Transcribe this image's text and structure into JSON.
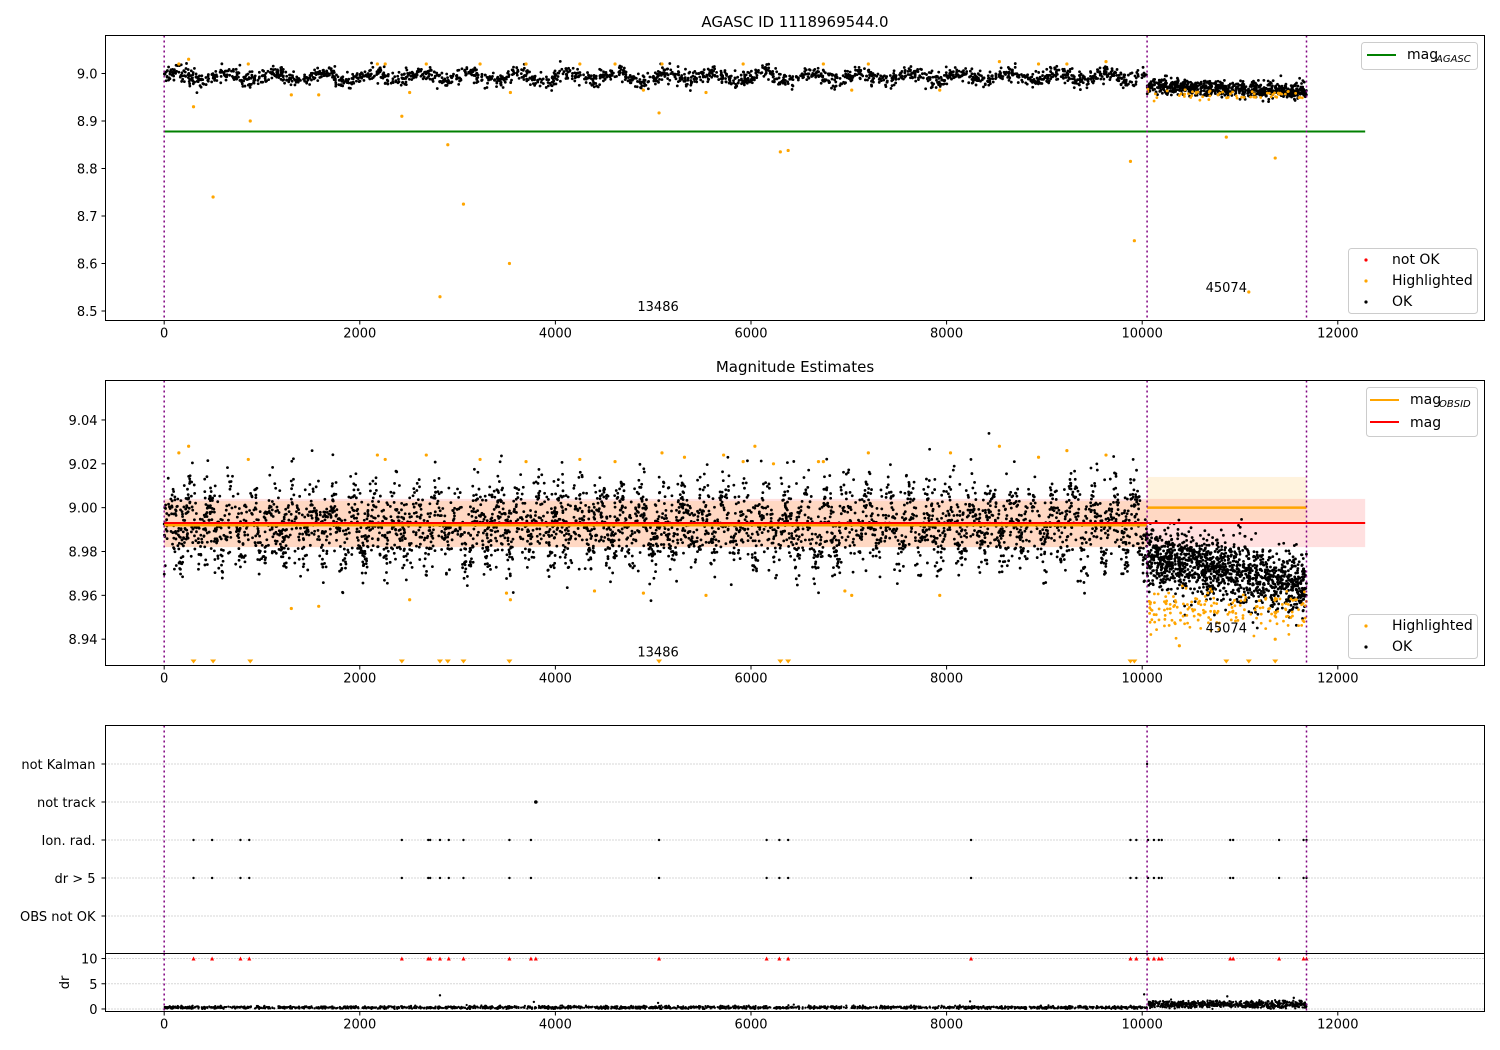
{
  "chart_data": [
    {
      "type": "scatter",
      "title": "AGASC ID 1118969544.0",
      "xlim": [
        -600,
        13500
      ],
      "ylim": [
        8.48,
        9.08
      ],
      "x_ticks": [
        0,
        2000,
        4000,
        6000,
        8000,
        10000,
        12000
      ],
      "y_ticks": [
        8.5,
        8.6,
        8.7,
        8.8,
        8.9,
        9.0
      ],
      "y_tick_labels": [
        "8.5",
        "8.6",
        "8.7",
        "8.8",
        "8.9",
        "9.0"
      ],
      "obsid_boundaries": [
        0,
        10050,
        11680
      ],
      "obsid_labels": [
        {
          "text": "13486",
          "x": 5050,
          "y": 8.5
        },
        {
          "text": "45074",
          "x": 10860,
          "y": 8.54
        }
      ],
      "mag_agasc": {
        "value": 8.878,
        "x_range": [
          0,
          12280
        ]
      },
      "series": [
        {
          "name": "OK",
          "color": "#000000",
          "segments": [
            {
              "x_range": [
                0,
                10050
              ],
              "center": 8.993,
              "scatter": 0.008,
              "wave_amp": 0.01,
              "wave_period": 500,
              "n": 2000
            },
            {
              "x_range": [
                10050,
                11680
              ],
              "center": 8.973,
              "scatter": 0.008,
              "trend": -0.01,
              "n": 700
            }
          ]
        },
        {
          "name": "Highlighted",
          "color": "#ffa500",
          "points": [
            [
              300,
              8.93
            ],
            [
              500,
              8.74
            ],
            [
              880,
              8.9
            ],
            [
              2430,
              8.91
            ],
            [
              2900,
              8.85
            ],
            [
              2820,
              8.53
            ],
            [
              3060,
              8.725
            ],
            [
              3530,
              8.6
            ],
            [
              5060,
              8.917
            ],
            [
              6300,
              8.835
            ],
            [
              6380,
              8.838
            ],
            [
              9880,
              8.815
            ],
            [
              9920,
              8.648
            ],
            [
              10860,
              8.866
            ],
            [
              11090,
              8.54
            ],
            [
              11360,
              8.822
            ],
            [
              150,
              9.02
            ],
            [
              250,
              9.03
            ],
            [
              860,
              9.02
            ],
            [
              1300,
              8.955
            ],
            [
              1580,
              8.955
            ],
            [
              2180,
              9.02
            ],
            [
              2260,
              9.02
            ],
            [
              2510,
              8.96
            ],
            [
              2680,
              9.02
            ],
            [
              3230,
              9.02
            ],
            [
              3540,
              8.96
            ],
            [
              3700,
              9.02
            ],
            [
              4250,
              9.02
            ],
            [
              4610,
              9.02
            ],
            [
              4900,
              8.965
            ],
            [
              5090,
              9.02
            ],
            [
              5540,
              8.96
            ],
            [
              5920,
              9.02
            ],
            [
              6740,
              9.02
            ],
            [
              7030,
              8.965
            ],
            [
              7200,
              9.02
            ],
            [
              7930,
              8.965
            ],
            [
              8540,
              9.025
            ],
            [
              8940,
              9.02
            ],
            [
              9230,
              9.02
            ],
            [
              9630,
              9.025
            ]
          ],
          "band": {
            "x_range": [
              10050,
              11680
            ],
            "center": 8.955,
            "scatter": 0.005,
            "n": 60
          }
        }
      ],
      "legend_position": "top-right (mag AGASC) and bottom-right (not OK, Highlighted, OK)",
      "legend_top": [
        {
          "label": "mag",
          "sub": "AGASC",
          "color": "#008000"
        }
      ],
      "legend_bottom": [
        {
          "label": "not OK",
          "color": "#ff0000"
        },
        {
          "label": "Highlighted",
          "color": "#ffa500"
        },
        {
          "label": "OK",
          "color": "#000000"
        }
      ]
    },
    {
      "type": "scatter",
      "title": "Magnitude Estimates",
      "xlim": [
        -600,
        13500
      ],
      "ylim": [
        8.928,
        9.058
      ],
      "x_ticks": [
        0,
        2000,
        4000,
        6000,
        8000,
        10000,
        12000
      ],
      "y_ticks": [
        8.94,
        8.96,
        8.98,
        9.0,
        9.02,
        9.04
      ],
      "y_tick_labels": [
        "8.94",
        "8.96",
        "8.98",
        "9.00",
        "9.02",
        "9.04"
      ],
      "obsid_boundaries": [
        0,
        10050,
        11680
      ],
      "obsid_labels": [
        {
          "text": "13486",
          "x": 5050,
          "y": 8.932
        },
        {
          "text": "45074",
          "x": 10860,
          "y": 8.943
        }
      ],
      "mag": {
        "value": 8.993,
        "band": [
          8.982,
          9.004
        ],
        "x_range": [
          0,
          12280
        ]
      },
      "mag_obsid": [
        {
          "x_range": [
            0,
            10050
          ],
          "value": 8.992,
          "band": [
            8.982,
            9.003
          ]
        },
        {
          "x_range": [
            10050,
            11680
          ],
          "value": 9.0,
          "band": [
            8.994,
            9.014
          ]
        }
      ],
      "series": [
        {
          "name": "OK",
          "color": "#000000",
          "segments": [
            {
              "x_range": [
                0,
                10050
              ],
              "center": 8.992,
              "scatter": 0.009,
              "wave_amp": 0.01,
              "wave_period": 210,
              "n": 3800
            },
            {
              "x_range": [
                10050,
                11680
              ],
              "center": 8.978,
              "scatter": 0.007,
              "trend": -0.014,
              "n": 1300
            }
          ]
        },
        {
          "name": "Highlighted",
          "color": "#ffa500",
          "points": [
            [
              150,
              9.025
            ],
            [
              250,
              9.028
            ],
            [
              860,
              9.022
            ],
            [
              1300,
              8.954
            ],
            [
              1580,
              8.955
            ],
            [
              2180,
              9.024
            ],
            [
              2260,
              9.022
            ],
            [
              2510,
              8.958
            ],
            [
              2680,
              9.024
            ],
            [
              3230,
              9.022
            ],
            [
              3500,
              8.961
            ],
            [
              3540,
              8.958
            ],
            [
              3700,
              9.021
            ],
            [
              4250,
              9.022
            ],
            [
              4400,
              8.962
            ],
            [
              4610,
              9.021
            ],
            [
              4900,
              8.961
            ],
            [
              5090,
              9.025
            ],
            [
              5320,
              9.023
            ],
            [
              5540,
              8.96
            ],
            [
              5720,
              9.024
            ],
            [
              5920,
              9.021
            ],
            [
              6040,
              9.028
            ],
            [
              6230,
              9.02
            ],
            [
              6690,
              9.021
            ],
            [
              6740,
              9.021
            ],
            [
              6960,
              8.962
            ],
            [
              7030,
              8.96
            ],
            [
              7200,
              9.025
            ],
            [
              7930,
              8.96
            ],
            [
              8040,
              9.025
            ],
            [
              8540,
              9.028
            ],
            [
              8940,
              9.023
            ],
            [
              9230,
              9.026
            ],
            [
              9630,
              9.024
            ],
            [
              10380,
              8.937
            ],
            [
              11360,
              8.94
            ]
          ],
          "band": {
            "x_range": [
              10050,
              11680
            ],
            "center": 8.953,
            "scatter": 0.005,
            "n": 180
          },
          "clipped_x": [
            300,
            500,
            880,
            2430,
            2820,
            2900,
            3060,
            3530,
            5060,
            6300,
            6380,
            9880,
            9920,
            10860,
            11090,
            11360
          ]
        }
      ],
      "legend_position": "top-right (mag OBSID, mag) and bottom-right (Highlighted, OK)",
      "legend_top": [
        {
          "label": "mag",
          "sub": "OBSID",
          "color": "#ffa500"
        },
        {
          "label": "mag",
          "sub": "",
          "color": "#ff0000"
        }
      ],
      "legend_bottom": [
        {
          "label": "Highlighted",
          "color": "#ffa500"
        },
        {
          "label": "OK",
          "color": "#000000"
        }
      ]
    },
    {
      "type": "scatter",
      "title": "",
      "xlim": [
        -600,
        13500
      ],
      "x_ticks": [
        0,
        2000,
        4000,
        6000,
        8000,
        10000,
        12000
      ],
      "obsid_boundaries": [
        0,
        10050,
        11680
      ],
      "flag_rows": [
        "not Kalman",
        "not track",
        "Ion. rad.",
        "dr > 5",
        "OBS not OK"
      ],
      "flags": {
        "not Kalman": [
          10050
        ],
        "not track": [
          3800
        ],
        "Ion. rad.": [
          300,
          490,
          780,
          870,
          2430,
          2700,
          2720,
          2820,
          2910,
          3060,
          3530,
          3750,
          5060,
          6160,
          6290,
          6380,
          8250,
          9880,
          9940,
          10060,
          10120,
          10170,
          10200,
          10900,
          10930,
          11400,
          11650,
          11680
        ],
        "dr > 5": [
          300,
          490,
          780,
          870,
          2430,
          2700,
          2720,
          2820,
          2910,
          3060,
          3530,
          3750,
          5060,
          6160,
          6290,
          6380,
          8250,
          9880,
          9940,
          10060,
          10120,
          10170,
          10200,
          10900,
          10930,
          11400,
          11650,
          11680
        ],
        "OBS not OK": []
      },
      "dr": {
        "ylabel": "dr",
        "ylim": [
          -0.5,
          11
        ],
        "y_ticks": [
          0,
          5,
          10
        ],
        "y_tick_labels": [
          "0",
          "5",
          "10"
        ],
        "clip_value": 10,
        "clipped_x": [
          300,
          490,
          780,
          870,
          2430,
          2700,
          2720,
          2820,
          2910,
          3060,
          3530,
          3750,
          3800,
          5060,
          6160,
          6290,
          6380,
          8250,
          9880,
          9940,
          10060,
          10120,
          10170,
          10200,
          10900,
          10930,
          11400,
          11650,
          11680
        ],
        "segments": [
          {
            "x_range": [
              0,
              10050
            ],
            "center": 0.3,
            "scatter": 0.15,
            "n": 1800
          },
          {
            "x_range": [
              10050,
              11680
            ],
            "center": 0.9,
            "scatter": 0.35,
            "n": 700
          }
        ],
        "outliers": [
          [
            2820,
            2.7
          ],
          [
            10020,
            2.9
          ],
          [
            10870,
            2.5
          ],
          [
            11550,
            2.2
          ],
          [
            3780,
            1.4
          ],
          [
            5050,
            1.2
          ],
          [
            8240,
            1.5
          ]
        ]
      }
    }
  ]
}
